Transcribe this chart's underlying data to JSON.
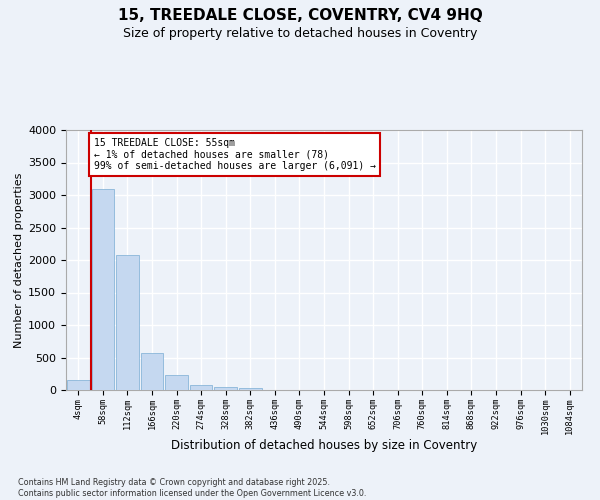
{
  "title1": "15, TREEDALE CLOSE, COVENTRY, CV4 9HQ",
  "title2": "Size of property relative to detached houses in Coventry",
  "xlabel": "Distribution of detached houses by size in Coventry",
  "ylabel": "Number of detached properties",
  "bin_labels": [
    "4sqm",
    "58sqm",
    "112sqm",
    "166sqm",
    "220sqm",
    "274sqm",
    "328sqm",
    "382sqm",
    "436sqm",
    "490sqm",
    "544sqm",
    "598sqm",
    "652sqm",
    "706sqm",
    "760sqm",
    "814sqm",
    "868sqm",
    "922sqm",
    "976sqm",
    "1030sqm",
    "1084sqm"
  ],
  "bar_values": [
    148,
    3100,
    2080,
    575,
    230,
    70,
    45,
    35,
    0,
    0,
    0,
    0,
    0,
    0,
    0,
    0,
    0,
    0,
    0,
    0,
    0
  ],
  "bar_color": "#c5d8f0",
  "bar_edge_color": "#7aadd4",
  "marker_label_line1": "15 TREEDALE CLOSE: 55sqm",
  "marker_label_line2": "← 1% of detached houses are smaller (78)",
  "marker_label_line3": "99% of semi-detached houses are larger (6,091) →",
  "annotation_box_color": "#cc0000",
  "vline_x": 0.52,
  "ylim": [
    0,
    4000
  ],
  "yticks": [
    0,
    500,
    1000,
    1500,
    2000,
    2500,
    3000,
    3500,
    4000
  ],
  "bg_color": "#edf2f9",
  "grid_color": "#ffffff",
  "footer": "Contains HM Land Registry data © Crown copyright and database right 2025.\nContains public sector information licensed under the Open Government Licence v3.0."
}
